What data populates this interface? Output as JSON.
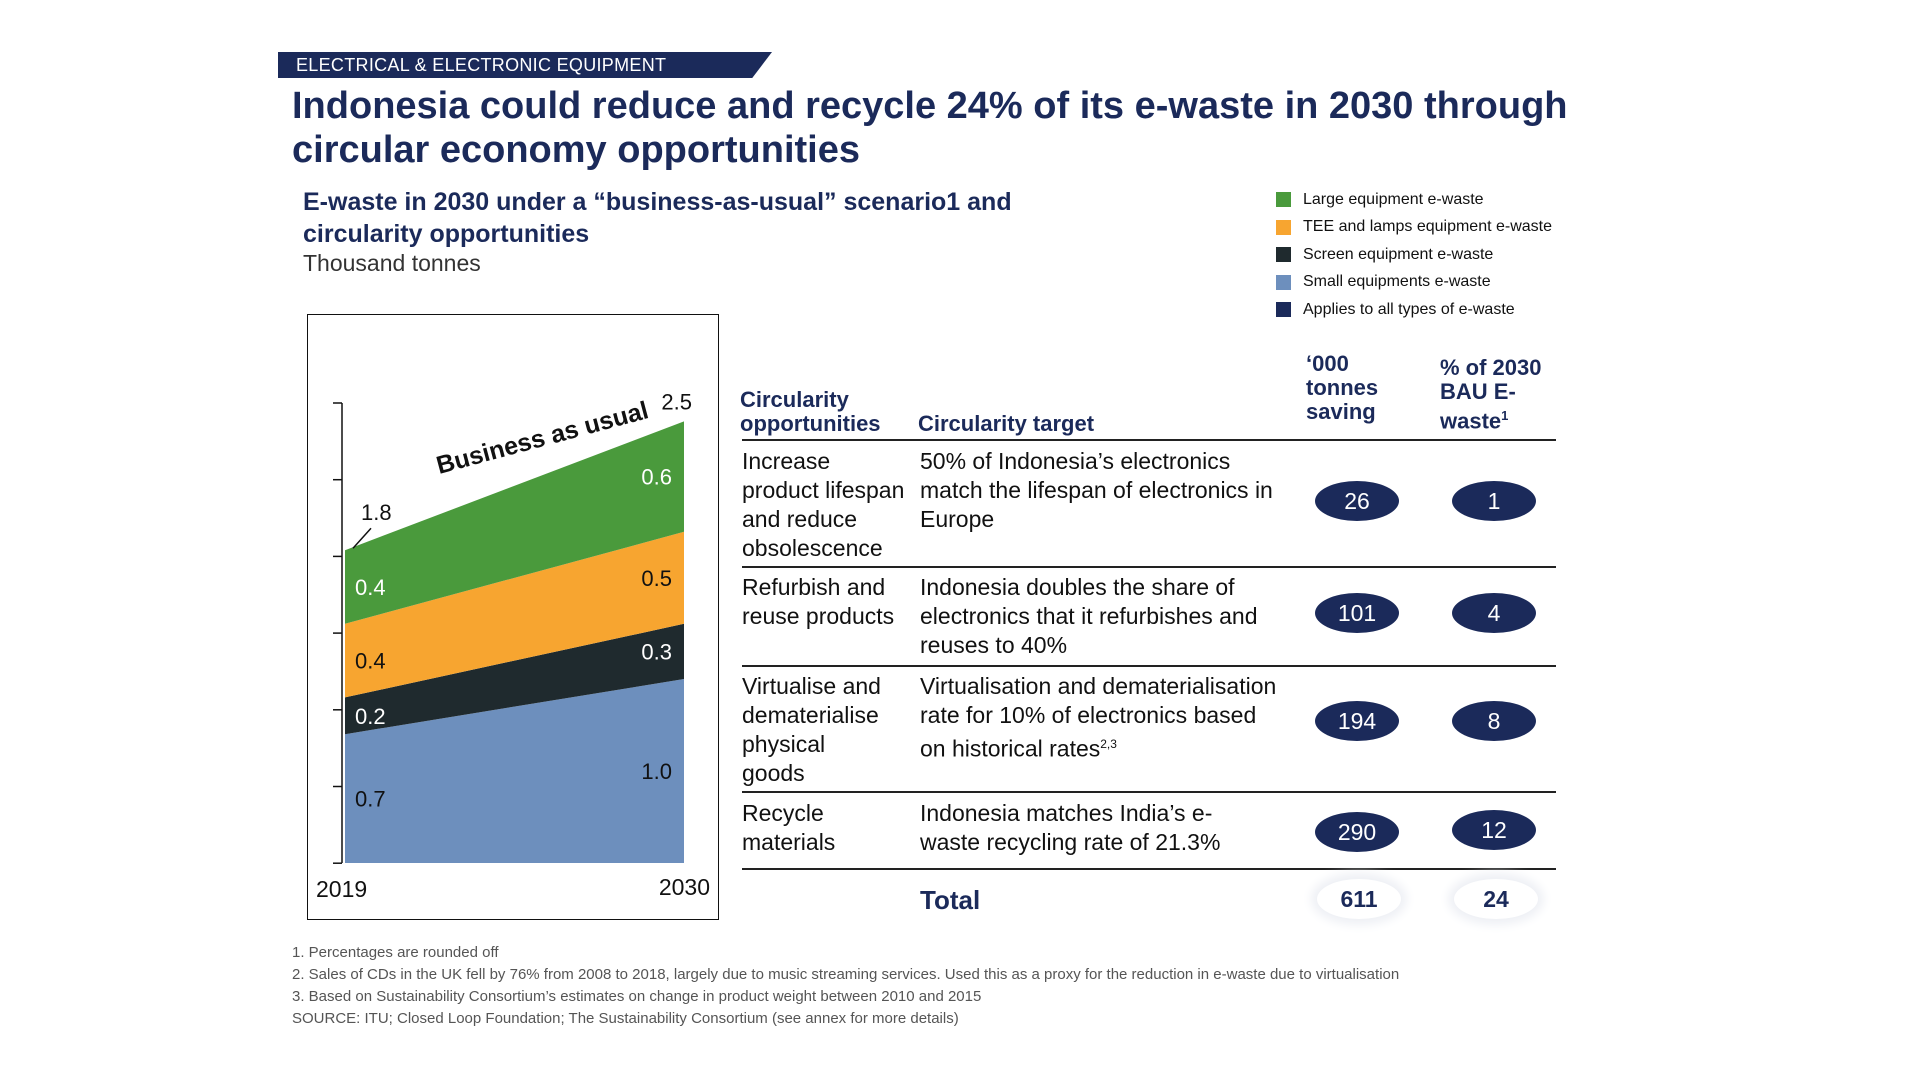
{
  "header": {
    "section_label": "ELECTRICAL & ELECTRONIC EQUIPMENT",
    "title_line1": "Indonesia could reduce and recycle 24% of its e-waste in 2030 through",
    "title_line2": "circular economy opportunities"
  },
  "chart_header": {
    "title_line1": "E-waste in 2030 under a “business-as-usual” scenario1 and",
    "title_line2": "circularity opportunities",
    "unit": "Thousand tonnes"
  },
  "legend": [
    {
      "label": "Large equipment e-waste",
      "color": "#4a9a3c"
    },
    {
      "label": "TEE and lamps equipment e-waste",
      "color": "#f7a530"
    },
    {
      "label": "Screen equipment e-waste",
      "color": "#1f2a2e"
    },
    {
      "label": "Small equipments e-waste",
      "color": "#6d8fbd"
    },
    {
      "label": "Applies to all types of e-waste",
      "color": "#1b2a5a"
    }
  ],
  "chart_data": {
    "type": "area",
    "x": [
      "2019",
      "2030"
    ],
    "stacked": true,
    "annotation": "Business as usual",
    "totals": [
      1.8,
      2.5
    ],
    "series": [
      {
        "name": "Small equipments e-waste",
        "values": [
          0.7,
          1.0
        ],
        "labels": [
          "0.7",
          "1.0"
        ],
        "color": "#6d8fbd"
      },
      {
        "name": "Screen equipment e-waste",
        "values": [
          0.2,
          0.3
        ],
        "labels": [
          "0.2",
          "0.3"
        ],
        "color": "#1f2a2e"
      },
      {
        "name": "TEE and lamps equipment e-waste",
        "values": [
          0.4,
          0.5
        ],
        "labels": [
          "0.4",
          "0.5"
        ],
        "color": "#f7a530"
      },
      {
        "name": "Large equipment e-waste",
        "values": [
          0.4,
          0.6
        ],
        "labels": [
          "0.4",
          "0.6"
        ],
        "color": "#4a9a3c"
      }
    ],
    "total_labels": [
      "1.8",
      "2.5"
    ]
  },
  "table": {
    "headers": {
      "opportunity_l1": "Circularity",
      "opportunity_l2": "opportunities",
      "target": "Circularity target",
      "tonnes_l1": "‘000",
      "tonnes_l2": "tonnes",
      "tonnes_l3": "saving",
      "pct_l1": "% of 2030",
      "pct_l2": "BAU E-",
      "pct_l3": "waste",
      "pct_sup": "1"
    },
    "rows": [
      {
        "opportunity": [
          "Increase",
          "product lifespan",
          "and reduce",
          "obsolescence"
        ],
        "target": [
          "50% of Indonesia’s electronics",
          "match the lifespan of electronics in",
          "Europe"
        ],
        "target_sup": "",
        "tonnes": "26",
        "pct": "1"
      },
      {
        "opportunity": [
          "Refurbish and",
          "reuse products"
        ],
        "target": [
          "Indonesia doubles the share of",
          "electronics that it refurbishes and",
          "reuses to 40%"
        ],
        "target_sup": "",
        "tonnes": "101",
        "pct": "4"
      },
      {
        "opportunity": [
          "Virtualise and",
          "dematerialise",
          "physical",
          "goods"
        ],
        "target": [
          "Virtualisation and dematerialisation",
          "rate for 10% of electronics based",
          "on historical rates"
        ],
        "target_sup": "2,3",
        "tonnes": "194",
        "pct": "8"
      },
      {
        "opportunity": [
          "Recycle",
          "materials"
        ],
        "target": [
          "Indonesia matches India’s e-",
          "waste recycling rate of 21.3%"
        ],
        "target_sup": "",
        "tonnes": "290",
        "pct": "12"
      }
    ],
    "total": {
      "label": "Total",
      "tonnes": "611",
      "pct": "24"
    }
  },
  "footnotes": [
    "1. Percentages are rounded off",
    "2. Sales of CDs in the UK fell by 76% from 2008 to 2018, largely due to music streaming services. Used this as a proxy for the reduction in e-waste due to virtualisation",
    "3. Based on Sustainability Consortium’s estimates on change in product weight between 2010 and 2015",
    "SOURCE: ITU; Closed Loop Foundation; The Sustainability Consortium (see annex for more details)"
  ]
}
